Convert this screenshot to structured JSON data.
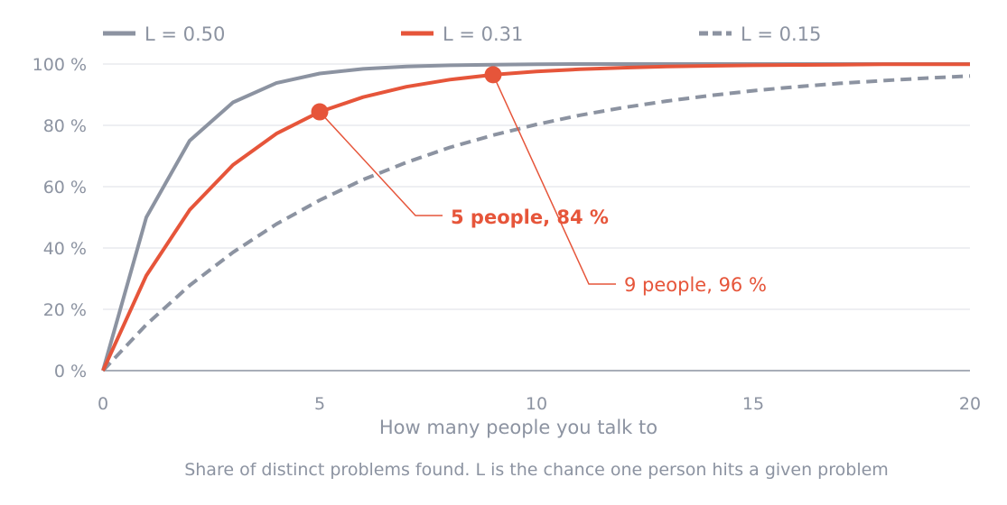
{
  "chart_data": {
    "type": "line",
    "xlabel": "How many people you talk to",
    "caption": "Share of distinct problems found. L is the chance one person hits a given problem",
    "xlim": [
      0,
      20
    ],
    "ylim": [
      0,
      100
    ],
    "x_ticks": [
      0,
      5,
      10,
      15,
      20
    ],
    "y_ticks": [
      0,
      20,
      40,
      60,
      80,
      100
    ],
    "y_tick_labels": [
      "0 %",
      "20 %",
      "40 %",
      "60 %",
      "80 %",
      "100 %"
    ],
    "grid": "horizontal",
    "legend_position": "top",
    "series": [
      {
        "name": "L = 0.50",
        "color": "#8c93a1",
        "dash": "solid",
        "x": [
          0,
          1,
          2,
          3,
          4,
          5,
          6,
          7,
          8,
          9,
          10,
          11,
          12,
          13,
          14,
          15,
          16,
          17,
          18,
          19,
          20
        ],
        "values": [
          0,
          50,
          75,
          87.5,
          93.8,
          96.9,
          98.4,
          99.2,
          99.6,
          99.8,
          99.9,
          100,
          100,
          100,
          100,
          100,
          100,
          100,
          100,
          100,
          100
        ]
      },
      {
        "name": "L = 0.31",
        "color": "#e6553a",
        "dash": "solid",
        "x": [
          0,
          1,
          2,
          3,
          4,
          5,
          6,
          7,
          8,
          9,
          10,
          11,
          12,
          13,
          14,
          15,
          16,
          17,
          18,
          19,
          20
        ],
        "values": [
          0,
          31,
          52.4,
          67.1,
          77.3,
          84.4,
          89.2,
          92.6,
          94.9,
          96.5,
          97.6,
          98.3,
          98.8,
          99.2,
          99.4,
          99.6,
          99.7,
          99.8,
          99.9,
          99.9,
          99.9
        ]
      },
      {
        "name": "L = 0.15",
        "color": "#8c93a1",
        "dash": "dashed",
        "x": [
          0,
          1,
          2,
          3,
          4,
          5,
          6,
          7,
          8,
          9,
          10,
          11,
          12,
          13,
          14,
          15,
          16,
          17,
          18,
          19,
          20
        ],
        "values": [
          0,
          15,
          27.8,
          38.6,
          47.8,
          55.6,
          62.3,
          67.9,
          72.8,
          76.8,
          80.3,
          83.3,
          85.8,
          87.9,
          89.7,
          91.3,
          92.6,
          93.7,
          94.6,
          95.4,
          96.1
        ]
      }
    ],
    "annotations": [
      {
        "label": "5 people, 84 %",
        "x": 5,
        "y": 84.4,
        "bold": true,
        "color": "#e6553a"
      },
      {
        "label": "9 people, 96 %",
        "x": 9,
        "y": 96.5,
        "bold": false,
        "color": "#e6553a"
      }
    ]
  }
}
